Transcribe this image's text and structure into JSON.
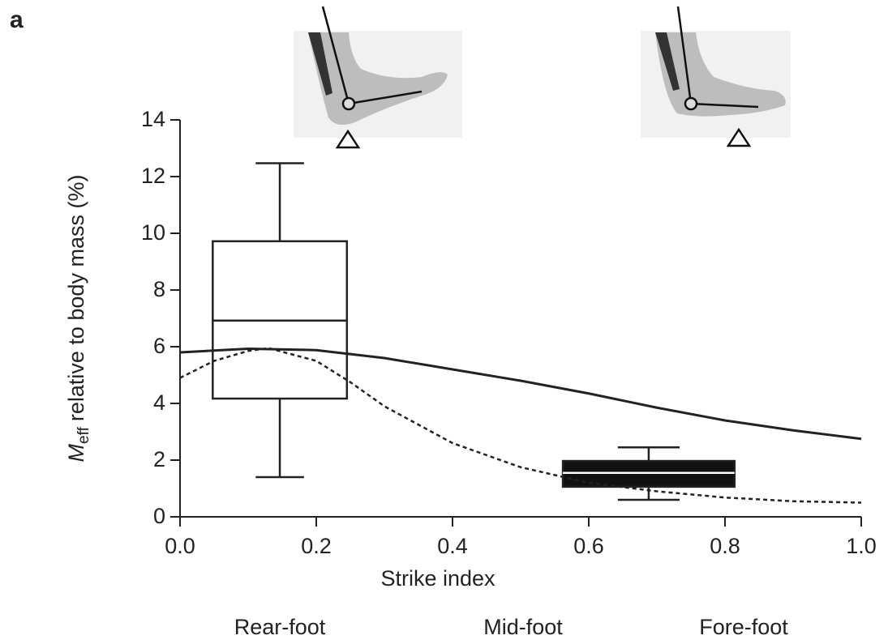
{
  "panel_label": "a",
  "chart_data": {
    "type": "box",
    "xlabel": "Strike index",
    "ylabel": {
      "symbol": "M",
      "subscript": "eff",
      "text": "relative to body mass (%)"
    },
    "regions": [
      "Rear-foot",
      "Mid-foot",
      "Fore-foot"
    ],
    "xlim": [
      0,
      1.0
    ],
    "xticks": [
      {
        "value": 0,
        "label": "0.0"
      },
      0.2,
      0.4,
      0.6,
      0.8,
      {
        "value": 1.0,
        "label": "1.0"
      }
    ],
    "ylim": [
      0,
      14
    ],
    "yticks": [
      0,
      2,
      4,
      6,
      8,
      10,
      12,
      14
    ],
    "boxes": [
      {
        "xrange": [
          0.048,
          0.245
        ],
        "whisker_low": 1.4,
        "q1": 4.17,
        "median": 6.92,
        "q3": 9.72,
        "whisker_high": 12.47,
        "fill": "#ffffff",
        "median_color": "#222222"
      },
      {
        "xrange": [
          0.562,
          0.814
        ],
        "whisker_low": 0.6,
        "q1": 1.06,
        "median": 1.55,
        "q3": 1.97,
        "whisker_high": 2.45,
        "fill": "#111111",
        "median_color": "#ffffff"
      }
    ],
    "series": [
      {
        "type": "line",
        "color": "#222222",
        "dash": "solid",
        "x": [
          0,
          0.1,
          0.2,
          0.3,
          0.4,
          0.5,
          0.6,
          0.7,
          0.8,
          0.9,
          1.0
        ],
        "values": [
          5.8,
          5.93,
          5.88,
          5.6,
          5.2,
          4.8,
          4.35,
          3.85,
          3.4,
          3.05,
          2.75
        ]
      },
      {
        "type": "line",
        "color": "#222222",
        "dash": "dotted",
        "x": [
          0,
          0.05,
          0.1,
          0.13,
          0.2,
          0.25,
          0.3,
          0.4,
          0.5,
          0.6,
          0.7,
          0.8,
          0.9,
          1.0
        ],
        "values": [
          4.9,
          5.5,
          5.85,
          5.95,
          5.5,
          4.75,
          3.9,
          2.6,
          1.75,
          1.2,
          0.9,
          0.68,
          0.55,
          0.5
        ]
      }
    ]
  }
}
